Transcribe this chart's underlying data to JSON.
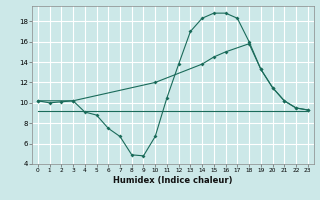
{
  "xlabel": "Humidex (Indice chaleur)",
  "bg_color": "#cce8e8",
  "grid_color": "#ffffff",
  "line_color": "#1a6b5a",
  "xlim": [
    -0.5,
    23.5
  ],
  "ylim": [
    4,
    19.5
  ],
  "xticks": [
    0,
    1,
    2,
    3,
    4,
    5,
    6,
    7,
    8,
    9,
    10,
    11,
    12,
    13,
    14,
    15,
    16,
    17,
    18,
    19,
    20,
    21,
    22,
    23
  ],
  "yticks": [
    4,
    6,
    8,
    10,
    12,
    14,
    16,
    18
  ],
  "line1_x": [
    0,
    1,
    2,
    3,
    4,
    5,
    6,
    7,
    8,
    9,
    10,
    11,
    12,
    13,
    14,
    15,
    16,
    17,
    18,
    19,
    20,
    21,
    22,
    23
  ],
  "line1_y": [
    10.2,
    10.0,
    10.1,
    10.2,
    9.1,
    8.8,
    7.5,
    6.7,
    4.9,
    4.8,
    6.7,
    10.5,
    13.8,
    17.0,
    18.3,
    18.8,
    18.8,
    18.3,
    16.0,
    13.3,
    11.5,
    10.2,
    9.5,
    9.3
  ],
  "line2_x": [
    0,
    3,
    10,
    14,
    15,
    16,
    18,
    19,
    20,
    21,
    22,
    23
  ],
  "line2_y": [
    10.2,
    10.2,
    12.0,
    13.8,
    14.5,
    15.0,
    15.8,
    13.3,
    11.5,
    10.2,
    9.5,
    9.3
  ],
  "line3_x": [
    0,
    23
  ],
  "line3_y": [
    9.2,
    9.2
  ]
}
